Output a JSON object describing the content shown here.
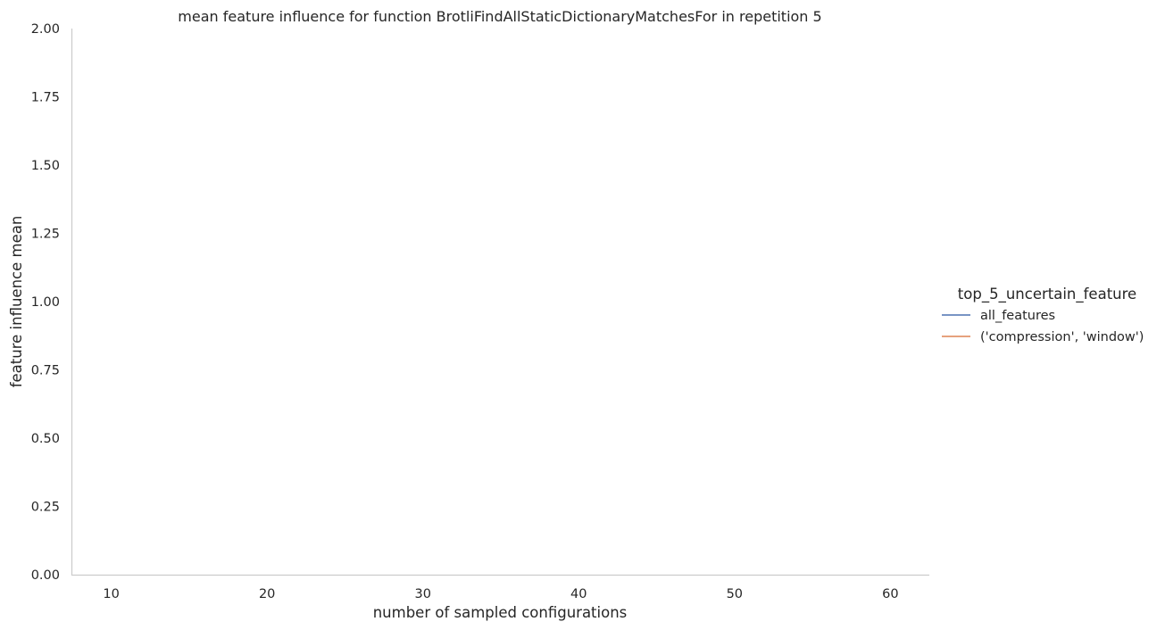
{
  "chart_data": {
    "type": "line",
    "title": "mean feature influence for function BrotliFindAllStaticDictionaryMatchesFor in repetition 5",
    "xlabel": "number of sampled configurations",
    "ylabel": "feature influence mean",
    "xlim": [
      7.5,
      62.5
    ],
    "ylim": [
      0.0,
      2.0
    ],
    "xticks": [
      10,
      20,
      30,
      40,
      50,
      60
    ],
    "xtick_labels": [
      "10",
      "20",
      "30",
      "40",
      "50",
      "60"
    ],
    "yticks": [
      0.0,
      0.25,
      0.5,
      0.75,
      1.0,
      1.25,
      1.5,
      1.75,
      2.0
    ],
    "ytick_labels": [
      "0.00",
      "0.25",
      "0.50",
      "0.75",
      "1.00",
      "1.25",
      "1.50",
      "1.75",
      "2.00"
    ],
    "grid": false,
    "legend": {
      "title": "top_5_uncertain_feature",
      "placement": "right"
    },
    "series": [
      {
        "name": "all_features",
        "color": "#4c72b0",
        "x": [],
        "y": []
      },
      {
        "name": "('compression', 'window')",
        "color": "#dd8452",
        "x": [],
        "y": []
      }
    ]
  }
}
